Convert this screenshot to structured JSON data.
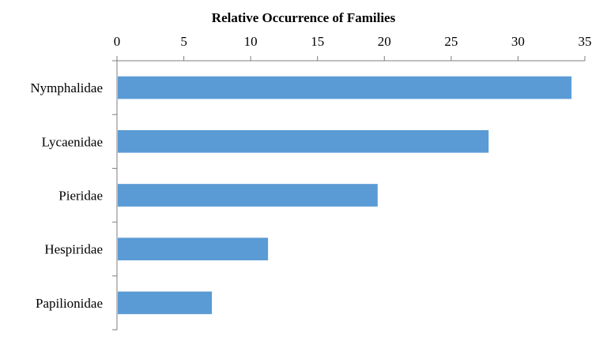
{
  "chart_data": {
    "type": "bar",
    "orientation": "horizontal",
    "title": "Relative Occurrence  of Families",
    "xlabel": "",
    "ylabel": "",
    "categories": [
      "Nymphalidae",
      "Lycaenidae",
      "Pieridae",
      "Hespiridae",
      "Papilionidae"
    ],
    "values": [
      34,
      27.8,
      19.5,
      11.3,
      7.1
    ],
    "xlim": [
      0,
      35
    ],
    "x_ticks": [
      0,
      5,
      10,
      15,
      20,
      25,
      30,
      35
    ],
    "x_axis_position": "top",
    "grid": false,
    "legend": "none",
    "bar_color": "#5b9bd5",
    "axis_color": "#7f7f7f"
  }
}
